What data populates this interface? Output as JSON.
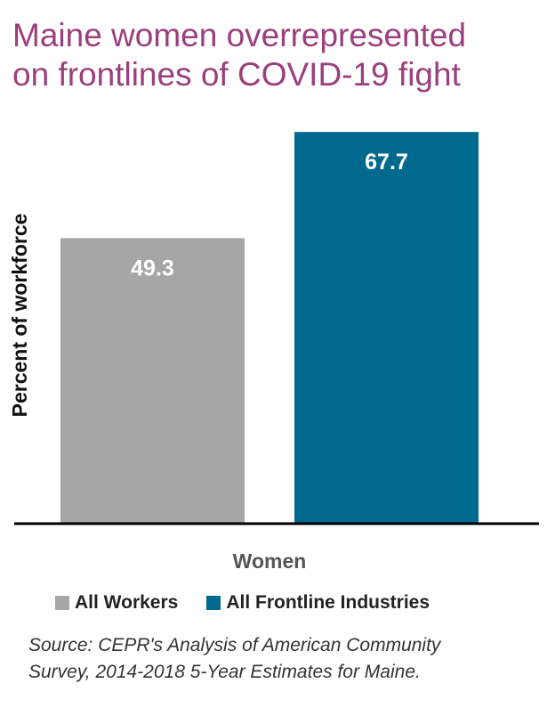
{
  "title_line1": "Maine women overrepresented",
  "title_line2": "on frontlines of COVID-19 fight",
  "colors": {
    "title": "#9b3f7d",
    "all_workers": "#a6a6a6",
    "frontline": "#006a8e"
  },
  "chart_data": {
    "type": "bar",
    "categories": [
      "Women"
    ],
    "xlabel": "Women",
    "ylabel": "Percent of workforce",
    "ylim": [
      0,
      70.5
    ],
    "grid": false,
    "legend_position": "bottom",
    "series": [
      {
        "name": "All Workers",
        "values": [
          49.3
        ],
        "label": "49.3",
        "color": "#a6a6a6"
      },
      {
        "name": "All Frontline Industries",
        "values": [
          67.7
        ],
        "label": "67.7",
        "color": "#006a8e"
      }
    ]
  },
  "source_line1": "Source: CEPR's Analysis of American Community",
  "source_line2": "Survey, 2014-2018 5-Year Estimates for Maine."
}
